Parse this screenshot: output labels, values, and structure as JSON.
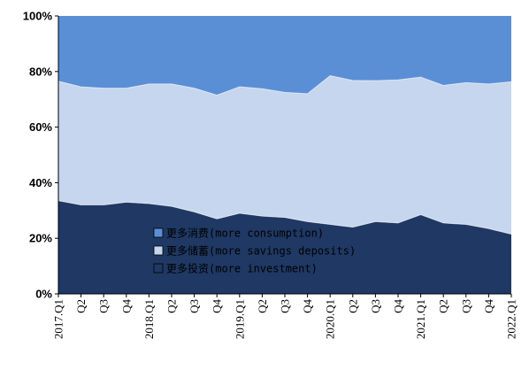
{
  "chart_data": {
    "type": "area",
    "stacked": true,
    "percent": true,
    "title": "",
    "xlabel": "",
    "ylabel": "",
    "ylim": [
      0,
      100
    ],
    "ytick_labels": [
      "0%",
      "20%",
      "40%",
      "60%",
      "80%",
      "100%"
    ],
    "categories": [
      "2017.Q1",
      "Q2",
      "Q3",
      "Q4",
      "2018.Q1",
      "Q2",
      "Q3",
      "Q4",
      "2019.Q1",
      "Q2",
      "Q3",
      "Q4",
      "2020.Q1",
      "Q2",
      "Q3",
      "Q4",
      "2021.Q1",
      "Q2",
      "Q3",
      "Q4",
      "2022.Q1"
    ],
    "grid": false,
    "legend_position": "bottom-center",
    "series": [
      {
        "name": "更多投资(more investment)",
        "color": "#1f3864",
        "values": [
          33.5,
          32,
          32,
          33,
          32.5,
          31.5,
          29.5,
          27,
          29,
          28,
          27.5,
          26,
          25,
          24,
          26,
          25.5,
          28.5,
          25.5,
          25,
          23.5,
          21.5
        ]
      },
      {
        "name": "更多储蓄(more savings deposits)",
        "color": "#c6d6ee",
        "values": [
          43,
          42.5,
          42,
          41,
          43,
          44,
          44.5,
          44.5,
          45.5,
          45.8,
          45,
          46,
          53.5,
          52.8,
          50.7,
          51.5,
          49.5,
          49.5,
          51,
          52,
          54.8
        ]
      },
      {
        "name": "更多消费(more consumption)",
        "color": "#5a8fd6",
        "values": [
          23.5,
          25.5,
          26,
          26,
          24.5,
          24.5,
          26,
          28.5,
          25.5,
          26.2,
          27.5,
          28,
          21.5,
          23.2,
          23.3,
          23,
          22,
          25,
          24,
          24.5,
          23.7
        ]
      }
    ],
    "legend_order": [
      2,
      1,
      0
    ]
  }
}
